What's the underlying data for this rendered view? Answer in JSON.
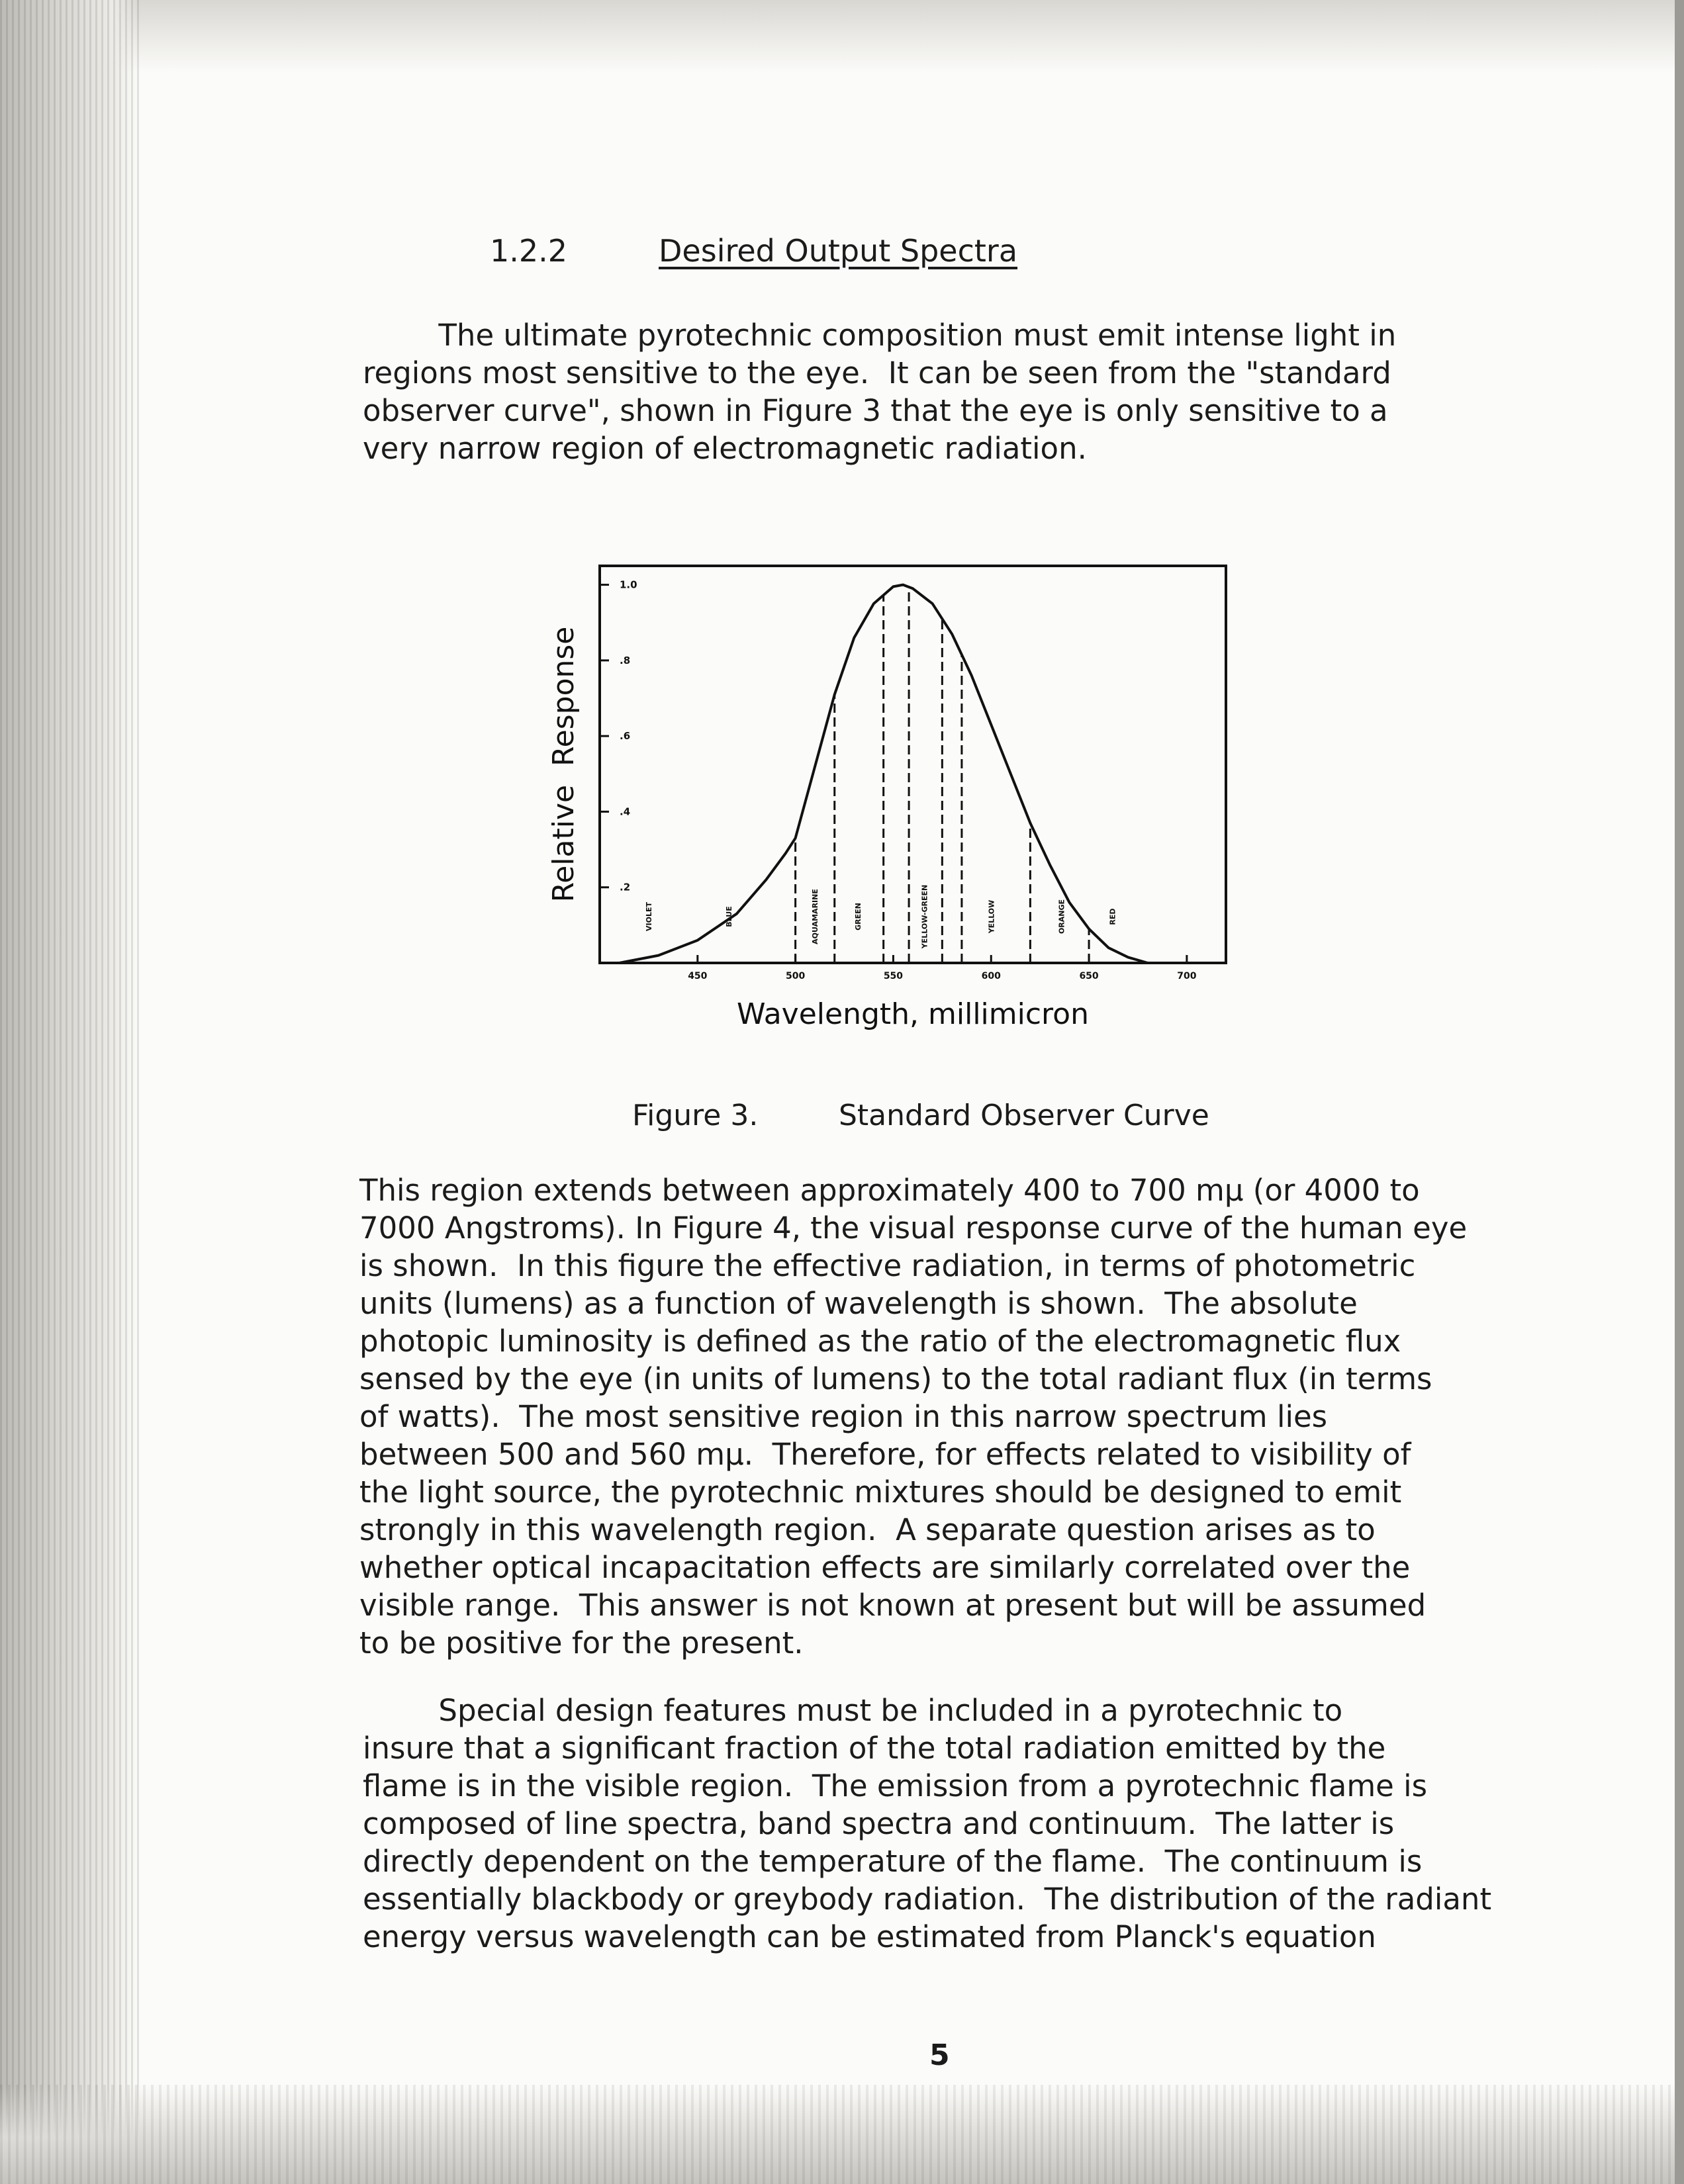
{
  "section": {
    "number": "1.2.2",
    "title": "Desired Output Spectra"
  },
  "paragraph1": [
    "        The ultimate pyrotechnic composition must emit intense light in",
    "regions most sensitive to the eye.  It can be seen from the \"standard",
    "observer curve\", shown in Figure 3 that the eye is only sensitive to a",
    "very narrow region of electromagnetic radiation."
  ],
  "chart_data": {
    "type": "line",
    "xlabel": "Wavelength, millimicron",
    "ylabel": "Relative  Response",
    "x_ticks": [
      450,
      500,
      550,
      600,
      650,
      700
    ],
    "x_tick_labels": [
      "450",
      "500",
      "550",
      "600",
      "650",
      "700"
    ],
    "y_ticks": [
      0.2,
      0.4,
      0.6,
      0.8,
      1.0
    ],
    "y_tick_labels": [
      ".2",
      ".4",
      ".6",
      ".8",
      "1.0"
    ],
    "xlim": [
      400,
      720
    ],
    "ylim": [
      0,
      1.05
    ],
    "grid": false,
    "series": [
      {
        "x": [
          410,
          430,
          450,
          470,
          485,
          495,
          500,
          510,
          520,
          530,
          540,
          550,
          555,
          560,
          570,
          580,
          590,
          600,
          610,
          620,
          630,
          640,
          650,
          660,
          670,
          680
        ],
        "y": [
          0.0,
          0.02,
          0.06,
          0.13,
          0.22,
          0.29,
          0.33,
          0.52,
          0.71,
          0.86,
          0.95,
          0.995,
          1.0,
          0.99,
          0.95,
          0.87,
          0.76,
          0.63,
          0.5,
          0.37,
          0.26,
          0.16,
          0.09,
          0.04,
          0.015,
          0.0
        ]
      }
    ],
    "band_boundaries": [
      500,
      520,
      545,
      558,
      575,
      585,
      620,
      650
    ],
    "bands": [
      {
        "label": "VIOLET",
        "center": 425
      },
      {
        "label": "BLUE",
        "center": 466
      },
      {
        "label": "AQUAMARINE",
        "center": 510
      },
      {
        "label": "GREEN",
        "center": 532
      },
      {
        "label": "YELLOW-GREEN",
        "center": 566
      },
      {
        "label": "YELLOW",
        "center": 600
      },
      {
        "label": "ORANGE",
        "center": 636
      },
      {
        "label": "RED",
        "center": 662
      }
    ]
  },
  "caption": {
    "label": "Figure  3.",
    "text": "Standard Observer Curve"
  },
  "paragraph2": [
    "This region extends between approximately 400 to 700 mµ (or 4000 to",
    "7000 Angstroms). In Figure 4, the visual response curve of the human eye",
    "is shown.  In this figure the effective radiation, in terms of photometric",
    "units (lumens) as a function of wavelength is shown.  The absolute",
    "photopic luminosity is defined as the ratio of the electromagnetic flux",
    "sensed by the eye (in units of lumens) to the total radiant flux (in terms",
    "of watts).  The most sensitive region in this narrow spectrum lies",
    "between 500 and 560 mµ.  Therefore, for effects related to visibility of",
    "the light source, the pyrotechnic mixtures should be designed to emit",
    "strongly in this wavelength region.  A separate question arises as to",
    "whether optical incapacitation effects are similarly correlated over the",
    "visible range.  This answer is not known at present but will be assumed",
    "to be positive for the present."
  ],
  "paragraph3": [
    "        Special design features must be included in a pyrotechnic to",
    "insure that a significant fraction of the total radiation emitted by the",
    "flame is in the visible region.  The emission from a pyrotechnic flame is",
    "composed of line spectra, band spectra and continuum.  The latter is",
    "directly dependent on the temperature of the flame.  The continuum is",
    "essentially blackbody or greybody radiation.  The distribution of the radiant",
    "energy versus wavelength can be estimated from Planck's equation"
  ],
  "page_number": "5"
}
